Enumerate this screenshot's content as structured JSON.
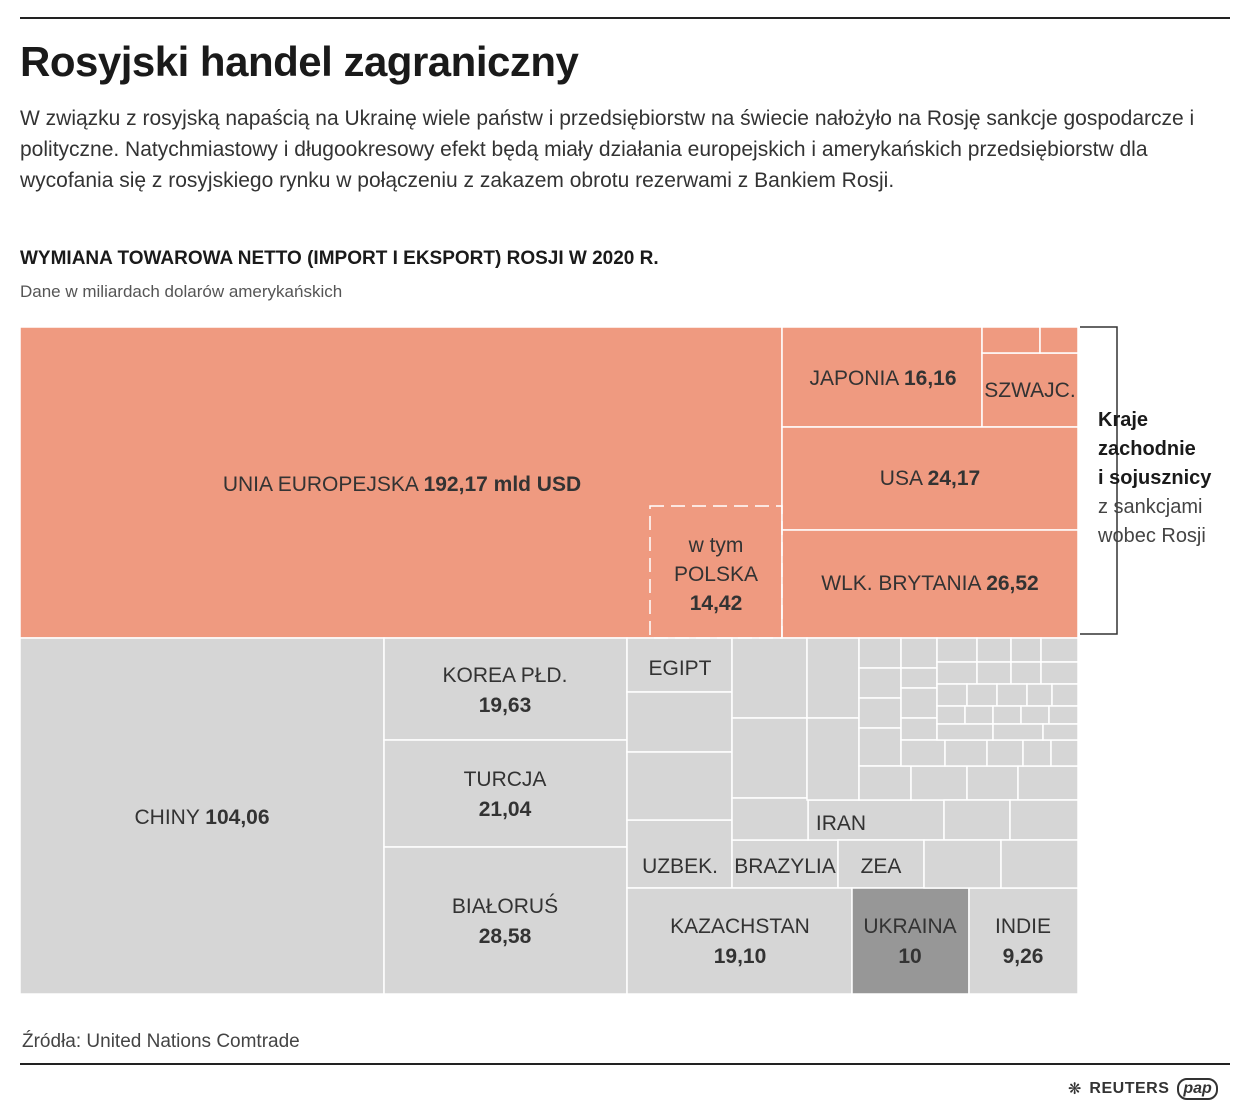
{
  "header": {
    "title": "Rosyjski handel zagraniczny",
    "lead": "W związku z rosyjską napaścią na Ukrainę wiele państw i przedsiębiorstw na świecie nałożyło na Rosję sankcje gospodarcze i polityczne. Natychmiastowy i długookresowy efekt będą miały działania europejskich i amerykańskich przedsiębiorstw dla wycofania się z rosyjskiego rynku w połączeniu z zakazem obrotu rezerwami z Bankiem Rosji.",
    "subtitle": "WYMIANA TOWAROWA NETTO (IMPORT I EKSPORT) ROSJI W 2020 R.",
    "unit": "Dane w miliardach dolarów amerykańskich"
  },
  "bracket": {
    "bold_lines": [
      "Kraje",
      "zachodnie",
      "i sojusznicy"
    ],
    "normal_lines": [
      "z sankcjami",
      "wobec Rosji"
    ]
  },
  "footer": {
    "source": "Źródła: United Nations Comtrade",
    "logo_reuters": "REUTERS",
    "logo_pap": "pap"
  },
  "colors": {
    "sanction": "#ef9a80",
    "other": "#d6d6d6",
    "ukraine": "#979797",
    "border": "#ffffff"
  },
  "chart_data": {
    "type": "treemap",
    "unit": "mld USD",
    "title": "WYMIANA TOWAROWA NETTO (IMPORT I EKSPORT) ROSJI W 2020 R.",
    "labelled": [
      {
        "id": "ue",
        "name": "UNIA EUROPEJSKA",
        "value": 192.17,
        "value_label": "192,17 mld USD",
        "group": "sanction"
      },
      {
        "id": "pl",
        "name": "w tym POLSKA",
        "value": 14.42,
        "value_label": "14,42",
        "group": "subset"
      },
      {
        "id": "jp",
        "name": "JAPONIA",
        "value": 16.16,
        "value_label": "16,16",
        "group": "sanction"
      },
      {
        "id": "ch",
        "name": "SZWAJC.",
        "value": null,
        "value_label": "",
        "group": "sanction"
      },
      {
        "id": "us",
        "name": "USA",
        "value": 24.17,
        "value_label": "24,17",
        "group": "sanction"
      },
      {
        "id": "gb",
        "name": "WLK. BRYTANIA",
        "value": 26.52,
        "value_label": "26,52",
        "group": "sanction"
      },
      {
        "id": "cn",
        "name": "CHINY",
        "value": 104.06,
        "value_label": "104,06",
        "group": "other"
      },
      {
        "id": "kr",
        "name": "KOREA PŁD.",
        "value": 19.63,
        "value_label": "19,63",
        "group": "other"
      },
      {
        "id": "tr",
        "name": "TURCJA",
        "value": 21.04,
        "value_label": "21,04",
        "group": "other"
      },
      {
        "id": "by",
        "name": "BIAŁORUŚ",
        "value": 28.58,
        "value_label": "28,58",
        "group": "other"
      },
      {
        "id": "eg",
        "name": "EGIPT",
        "value": null,
        "value_label": "",
        "group": "other"
      },
      {
        "id": "uz",
        "name": "UZBEK.",
        "value": null,
        "value_label": "",
        "group": "other"
      },
      {
        "id": "br",
        "name": "BRAZYLIA",
        "value": null,
        "value_label": "",
        "group": "other"
      },
      {
        "id": "ir",
        "name": "IRAN",
        "value": null,
        "value_label": "",
        "group": "other"
      },
      {
        "id": "ae",
        "name": "ZEA",
        "value": null,
        "value_label": "",
        "group": "other"
      },
      {
        "id": "kz",
        "name": "KAZACHSTAN",
        "value": 19.1,
        "value_label": "19,10",
        "group": "other"
      },
      {
        "id": "ua",
        "name": "UKRAINA",
        "value": 10,
        "value_label": "10",
        "group": "ukraine"
      },
      {
        "id": "in",
        "name": "INDIE",
        "value": 9.26,
        "value_label": "9,26",
        "group": "other"
      }
    ]
  }
}
